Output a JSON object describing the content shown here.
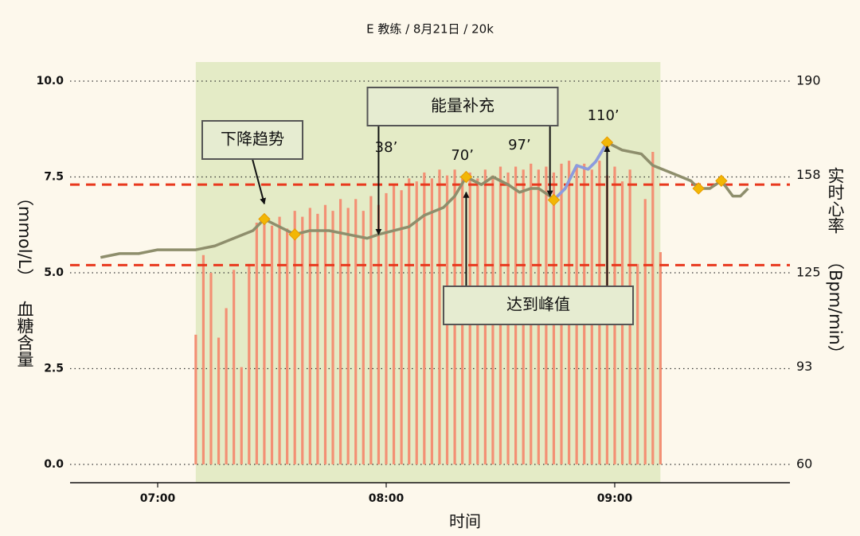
{
  "chart_data": {
    "type": "line",
    "title": "E 教练 / 8月21日 / 20k",
    "x_label": "时间",
    "y_label_unit": "（mmol/L）",
    "y_label": "血糖含量",
    "y2_label": "实时心率",
    "y2_label_unit": "（Bpm/min）",
    "background": "#fdf8ec",
    "grid": true,
    "xlim": [
      "06:37",
      "09:46"
    ],
    "xticks": [
      "07:00",
      "08:00",
      "09:00"
    ],
    "ylim": [
      0,
      10
    ],
    "yticks": [
      {
        "value": 0,
        "label": "0.0"
      },
      2.5,
      {
        "value": 5,
        "label": "5.0"
      },
      7.5,
      {
        "value": 10,
        "label": "10.0"
      }
    ],
    "y2lim": [
      60,
      190
    ],
    "y2ticks": [
      60,
      93,
      125,
      158,
      190
    ],
    "shaded_region": {
      "from": "07:10",
      "to": "09:12",
      "color": "#e4ebc6"
    },
    "reference_lines": [
      {
        "value": 7.3,
        "color": "#e8391e"
      },
      {
        "value": 5.2,
        "color": "#e8391e"
      }
    ],
    "series": [
      {
        "type": "bar",
        "axis": "y2",
        "color": "#f39074",
        "x": [
          "07:10",
          "07:12",
          "07:14",
          "07:16",
          "07:18",
          "07:20",
          "07:22",
          "07:24",
          "07:26",
          "07:28",
          "07:30",
          "07:32",
          "07:34",
          "07:36",
          "07:38",
          "07:40",
          "07:42",
          "07:44",
          "07:46",
          "07:48",
          "07:50",
          "07:52",
          "07:54",
          "07:56",
          "07:58",
          "08:00",
          "08:02",
          "08:04",
          "08:06",
          "08:08",
          "08:10",
          "08:12",
          "08:14",
          "08:16",
          "08:18",
          "08:20",
          "08:22",
          "08:24",
          "08:26",
          "08:28",
          "08:30",
          "08:32",
          "08:34",
          "08:36",
          "08:38",
          "08:40",
          "08:42",
          "08:44",
          "08:46",
          "08:48",
          "08:50",
          "08:52",
          "08:54",
          "08:56",
          "08:58",
          "09:00",
          "09:02",
          "09:04",
          "09:06",
          "09:08",
          "09:10",
          "09:12"
        ],
        "values": [
          104,
          131,
          125,
          103,
          113,
          126,
          93,
          128,
          142,
          143,
          141,
          144,
          140,
          146,
          144,
          147,
          145,
          148,
          146,
          150,
          147,
          150,
          146,
          151,
          148,
          152,
          155,
          153,
          157,
          156,
          159,
          157,
          160,
          158,
          160,
          157,
          159,
          157,
          160,
          158,
          161,
          159,
          161,
          160,
          162,
          160,
          161,
          159,
          162,
          163,
          161,
          162,
          160,
          163,
          158,
          161,
          156,
          160,
          128,
          150,
          166,
          132
        ]
      },
      {
        "type": "line",
        "color": "#8e8e6c",
        "x": [
          "06:45",
          "06:50",
          "06:55",
          "07:00",
          "07:05",
          "07:10",
          "07:15",
          "07:20",
          "07:25",
          "07:28",
          "07:32",
          "07:36",
          "07:40",
          "07:45",
          "07:50",
          "07:55",
          "07:58",
          "08:02",
          "08:06",
          "08:10",
          "08:15",
          "08:18",
          "08:21",
          "08:25",
          "08:28",
          "08:32",
          "08:35",
          "08:38",
          "08:40",
          "08:43",
          "08:44",
          "08:47",
          "08:50",
          "08:53",
          "08:55",
          "08:58",
          "09:02",
          "09:07",
          "09:10",
          "09:15",
          "09:20",
          "09:22",
          "09:25",
          "09:28",
          "09:31",
          "09:33",
          "09:35"
        ],
        "values": [
          5.4,
          5.5,
          5.5,
          5.6,
          5.6,
          5.6,
          5.7,
          5.9,
          6.1,
          6.4,
          6.2,
          6.0,
          6.1,
          6.1,
          6.0,
          5.9,
          6.0,
          6.1,
          6.2,
          6.5,
          6.7,
          7.0,
          7.5,
          7.3,
          7.5,
          7.3,
          7.1,
          7.2,
          7.2,
          7.0,
          6.9,
          7.2,
          7.8,
          7.7,
          7.9,
          8.4,
          8.2,
          8.1,
          7.8,
          7.6,
          7.4,
          7.2,
          7.2,
          7.4,
          7.0,
          7.0,
          7.2
        ]
      },
      {
        "type": "line",
        "color": "#8c9be0",
        "x": [
          "08:44",
          "08:47",
          "08:50",
          "08:53",
          "08:55",
          "08:58"
        ],
        "values": [
          6.9,
          7.2,
          7.8,
          7.7,
          7.9,
          8.4
        ]
      },
      {
        "type": "scatter",
        "color": "#f2b705",
        "x": [
          "07:28",
          "07:36",
          "08:21",
          "08:44",
          "08:58",
          "09:22",
          "09:28"
        ],
        "values": [
          6.4,
          6.0,
          7.5,
          6.9,
          8.4,
          7.2,
          7.4
        ]
      }
    ],
    "point_labels": [
      {
        "x": "08:00",
        "text": "38’"
      },
      {
        "x": "08:20",
        "text": "70’"
      },
      {
        "x": "08:35",
        "text": "97’"
      },
      {
        "x": "08:57",
        "text": "110’"
      }
    ],
    "annotations": [
      {
        "text": "下降趋势",
        "targets": [
          {
            "x": "07:28",
            "y": 6.8
          }
        ]
      },
      {
        "text": "能量补充",
        "targets": [
          {
            "x": "07:58",
            "y": 6.0
          },
          {
            "x": "08:43",
            "y": 7.0
          }
        ]
      },
      {
        "text": "达到峰值",
        "targets": [
          {
            "x": "08:21",
            "y": 7.1
          },
          {
            "x": "08:58",
            "y": 8.3
          }
        ]
      }
    ]
  }
}
